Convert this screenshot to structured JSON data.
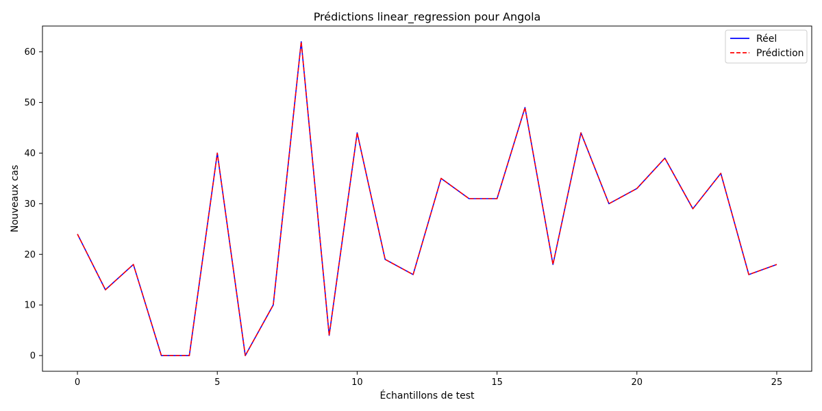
{
  "chart_data": {
    "type": "line",
    "title": "Prédictions linear_regression pour Angola",
    "xlabel": "Échantillons de test",
    "ylabel": "Nouveaux cas",
    "x": [
      0,
      1,
      2,
      3,
      4,
      5,
      6,
      7,
      8,
      9,
      10,
      11,
      12,
      13,
      14,
      15,
      16,
      17,
      18,
      19,
      20,
      21,
      22,
      23,
      24,
      25
    ],
    "xlim": [
      -1.25,
      26.25
    ],
    "ylim": [
      -3.1,
      65.1
    ],
    "xticks": [
      0,
      5,
      10,
      15,
      20,
      25
    ],
    "yticks": [
      0,
      10,
      20,
      30,
      40,
      50,
      60
    ],
    "grid": false,
    "legend_position": "top-right",
    "series": [
      {
        "name": "Réel",
        "color": "#0000ff",
        "style": "solid",
        "values": [
          24,
          13,
          18,
          0,
          0,
          40,
          0,
          10,
          62,
          4,
          44,
          19,
          16,
          35,
          31,
          31,
          49,
          18,
          44,
          30,
          33,
          39,
          29,
          36,
          16,
          18
        ]
      },
      {
        "name": "Prédiction",
        "color": "#ff0000",
        "style": "dashed",
        "values": [
          24,
          13,
          18,
          0,
          0,
          40,
          0,
          10,
          62,
          4,
          44,
          19,
          16,
          35,
          31,
          31,
          49,
          18,
          44,
          30,
          33,
          39,
          29,
          36,
          16,
          18
        ]
      }
    ]
  }
}
